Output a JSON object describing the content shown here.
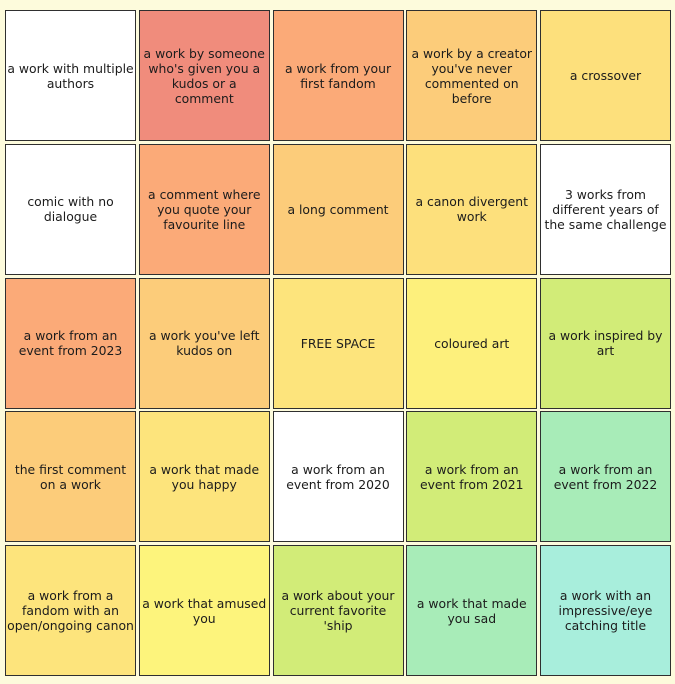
{
  "colors": {
    "background": "#fdfbdc",
    "border": "#2f2f2f",
    "palette": [
      "#ffffff",
      "#f08c7c",
      "#fbaa78",
      "#fccc7a",
      "#fde07c",
      "#fdf07c",
      "#d2ec78",
      "#a8ecb8",
      "#a8eedc"
    ]
  },
  "cells": [
    {
      "text": "a work with multiple authors",
      "color": "#ffffff"
    },
    {
      "text": "a work by someone who's given you a kudos or a comment",
      "color": "#f08c7c"
    },
    {
      "text": "a work from your first fandom",
      "color": "#fbaa78"
    },
    {
      "text": "a work by a creator you've never commented on before",
      "color": "#fccc7a"
    },
    {
      "text": "a crossover",
      "color": "#fde07c"
    },
    {
      "text": "comic with no dialogue",
      "color": "#ffffff"
    },
    {
      "text": "a comment where you quote your favourite line",
      "color": "#fbaa78"
    },
    {
      "text": "a long comment",
      "color": "#fccc7a"
    },
    {
      "text": "a canon divergent work",
      "color": "#fde07c"
    },
    {
      "text": "3 works from different years of the same challenge",
      "color": "#ffffff"
    },
    {
      "text": "a work from an event from 2023",
      "color": "#fbaa78"
    },
    {
      "text": "a work you've left kudos on",
      "color": "#fccc7a"
    },
    {
      "text": "FREE SPACE",
      "color": "#fde47c"
    },
    {
      "text": "coloured art",
      "color": "#fdf07c"
    },
    {
      "text": "a work inspired by art",
      "color": "#d2ec78"
    },
    {
      "text": "the first comment on a work",
      "color": "#fccc7a"
    },
    {
      "text": "a work that made you happy",
      "color": "#fde47c"
    },
    {
      "text": "a work from an event from 2020",
      "color": "#ffffff"
    },
    {
      "text": "a work from an event from 2021",
      "color": "#d2ec78"
    },
    {
      "text": "a work from an event from 2022",
      "color": "#a8ecb8"
    },
    {
      "text": "a work from a fandom with an open/ongoing canon",
      "color": "#fde47c"
    },
    {
      "text": "a work that amused you",
      "color": "#fdf47c"
    },
    {
      "text": "a work about your current favorite 'ship",
      "color": "#d2ec78"
    },
    {
      "text": "a work that made you sad",
      "color": "#a8ecb8"
    },
    {
      "text": "a work with an impressive/eye catching title",
      "color": "#a8eedc"
    }
  ]
}
